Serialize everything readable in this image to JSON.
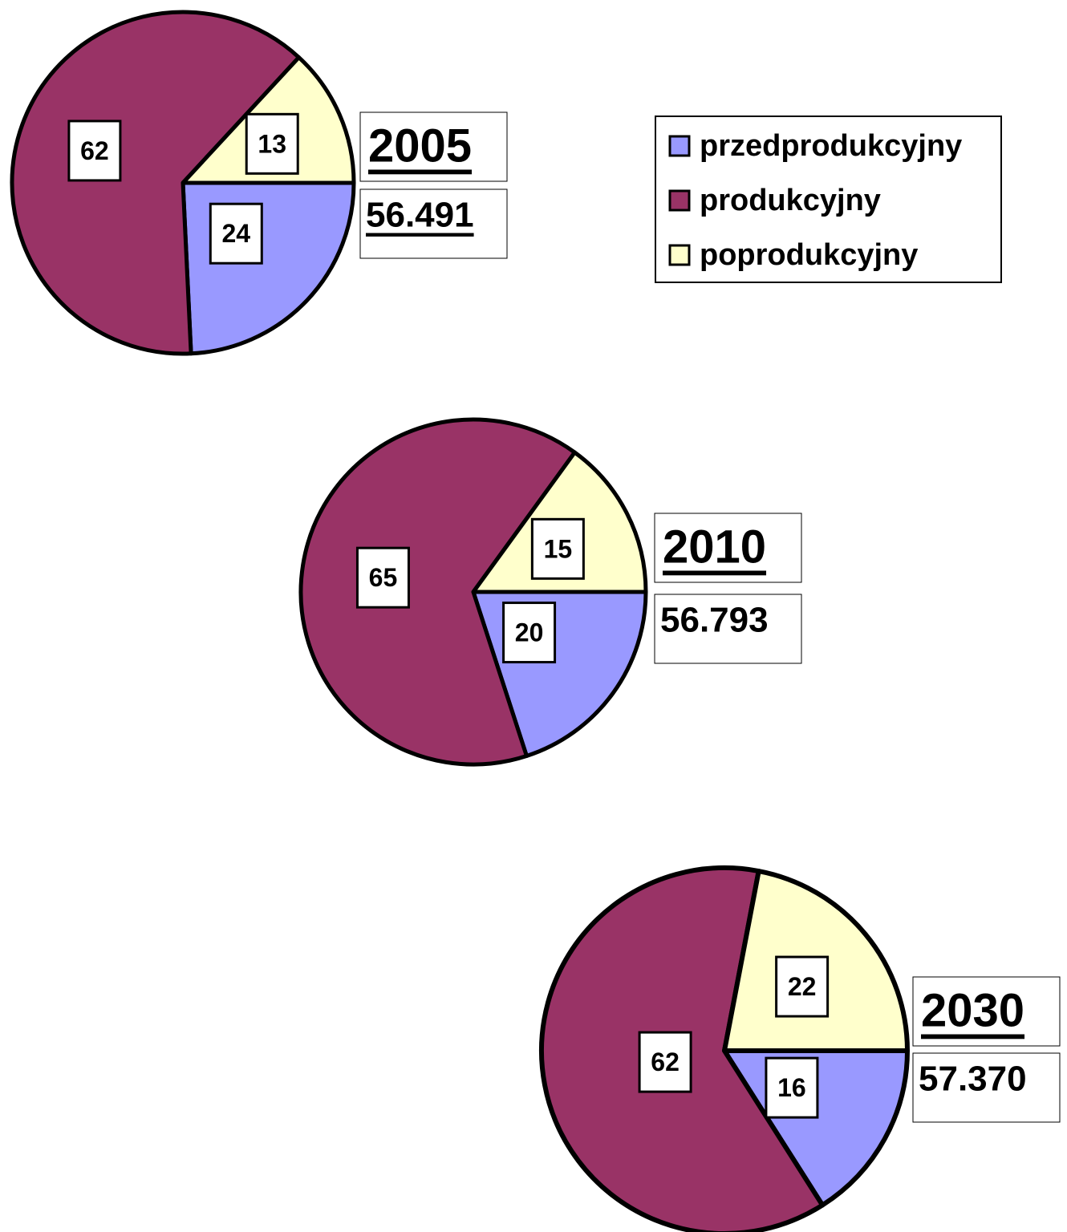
{
  "legend": {
    "labels": [
      "przedprodukcyjny",
      "produkcyjny",
      "poprodukcyjny"
    ],
    "colors": [
      "#9999ff",
      "#993366",
      "#ffffcc"
    ]
  },
  "chart_data": [
    {
      "type": "pie",
      "title": "2005",
      "subtitle": "56.491",
      "values": [
        24,
        62,
        13
      ]
    },
    {
      "type": "pie",
      "title": "2010",
      "subtitle": "56.793",
      "values": [
        20,
        65,
        15
      ]
    },
    {
      "type": "pie",
      "title": "2030",
      "subtitle": "57.370",
      "values": [
        16,
        62,
        22
      ]
    }
  ]
}
